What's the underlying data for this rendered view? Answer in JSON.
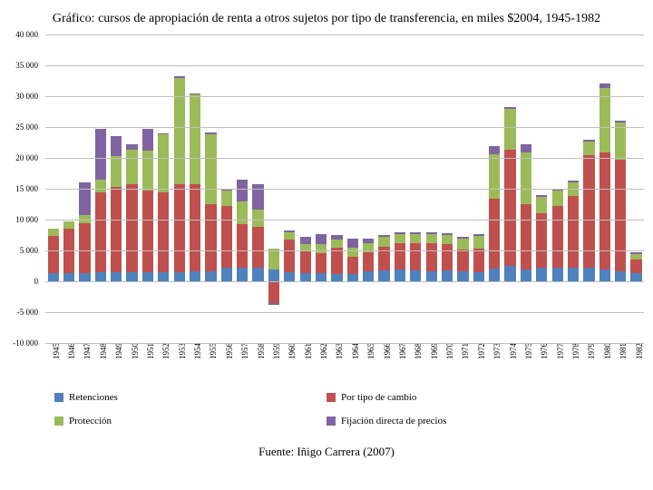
{
  "title": "Gráfico: cursos de apropiación de renta a otros sujetos por tipo de transferencia, en miles $2004, 1945-1982",
  "source": "Fuente: Iñigo Carrera (2007)",
  "chart": {
    "type": "stacked-bar",
    "ylim": [
      -10000,
      40000
    ],
    "yticks": [
      -10000,
      -5000,
      0,
      5000,
      10000,
      15000,
      20000,
      25000,
      30000,
      35000,
      40000
    ],
    "ytick_labels": [
      "-10 000",
      "-5 000",
      "0",
      "5 000",
      "10 000",
      "15 000",
      "20 000",
      "25 000",
      "30 000",
      "35 000",
      "40 000"
    ],
    "grid_color": "#bfbfbf",
    "background_color": "#ffffff",
    "label_fontsize": 9,
    "years": [
      1945,
      1946,
      1947,
      1948,
      1949,
      1950,
      1951,
      1952,
      1953,
      1954,
      1955,
      1956,
      1957,
      1958,
      1959,
      1960,
      1961,
      1962,
      1963,
      1964,
      1965,
      1966,
      1967,
      1968,
      1969,
      1970,
      1971,
      1972,
      1973,
      1974,
      1975,
      1976,
      1977,
      1978,
      1979,
      1980,
      1981,
      1982
    ],
    "series": [
      {
        "key": "retenciones",
        "label": "Retenciones",
        "color": "#4f81bd"
      },
      {
        "key": "cambio",
        "label": "Por tipo de cambio",
        "color": "#c0504d"
      },
      {
        "key": "proteccion",
        "label": "Protección",
        "color": "#9bbb59"
      },
      {
        "key": "fijacion",
        "label": "Fijación directa de precios",
        "color": "#8064a2"
      }
    ],
    "data": {
      "retenciones": [
        1400,
        1400,
        1400,
        1500,
        1500,
        1500,
        1500,
        1500,
        1500,
        1600,
        1700,
        2300,
        2300,
        2300,
        1900,
        1500,
        1300,
        1300,
        1200,
        1200,
        1700,
        1800,
        2000,
        1800,
        1700,
        1800,
        1600,
        1500,
        2100,
        2500,
        2000,
        2200,
        2200,
        2300,
        2200,
        1900,
        1700,
        1300
      ],
      "cambio": [
        6000,
        7200,
        8000,
        13000,
        13800,
        14200,
        13200,
        13000,
        14300,
        14200,
        10800,
        10000,
        7000,
        6600,
        -3500,
        5300,
        3600,
        3300,
        4300,
        2800,
        3000,
        3800,
        4200,
        4400,
        4500,
        4300,
        3600,
        3800,
        11300,
        18800,
        10600,
        8800,
        10000,
        11500,
        18200,
        19000,
        18000,
        2200
      ],
      "proteccion": [
        1200,
        1200,
        1400,
        2000,
        5000,
        5600,
        6500,
        9300,
        17200,
        14500,
        11300,
        2500,
        3700,
        2800,
        3400,
        1200,
        1200,
        1500,
        1300,
        1500,
        1500,
        1600,
        1500,
        1500,
        1500,
        1500,
        1800,
        2100,
        7200,
        6700,
        8300,
        2700,
        2500,
        2300,
        2300,
        10400,
        6000,
        1000
      ],
      "fijacion": [
        0,
        0,
        5200,
        8300,
        3200,
        900,
        3500,
        200,
        200,
        200,
        300,
        300,
        3500,
        4000,
        -300,
        200,
        1200,
        1600,
        800,
        1400,
        800,
        300,
        200,
        200,
        200,
        200,
        200,
        300,
        1400,
        200,
        1400,
        300,
        200,
        300,
        300,
        800,
        300,
        200
      ]
    }
  },
  "legend": {
    "items": [
      [
        "retenciones",
        "cambio"
      ],
      [
        "proteccion",
        "fijacion"
      ]
    ]
  }
}
